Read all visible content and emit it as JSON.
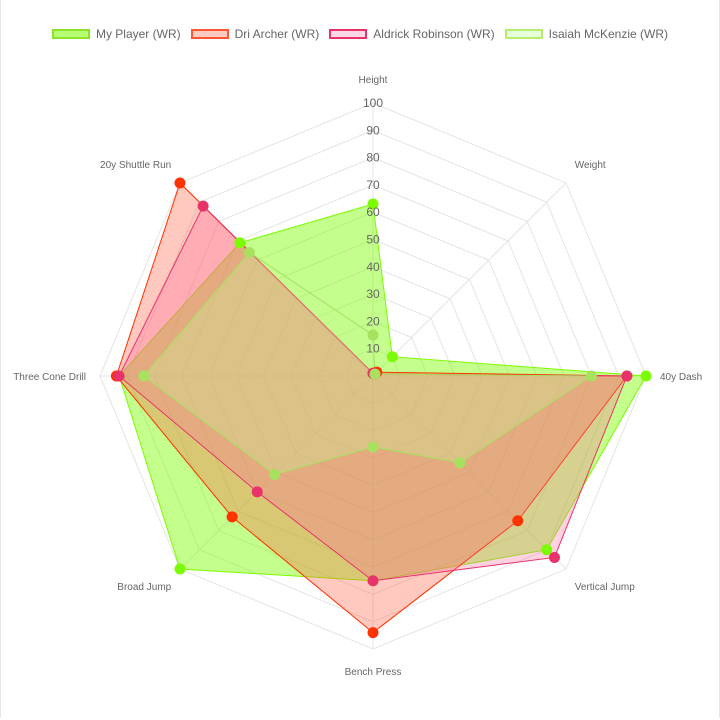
{
  "chart_data": {
    "type": "radar",
    "axes": [
      "Height",
      "Weight",
      "40y Dash",
      "Vertical Jump",
      "Bench Press",
      "Broad Jump",
      "Three Cone Drill",
      "20y Shuttle Run"
    ],
    "r_ticks": [
      "10",
      "20",
      "30",
      "40",
      "50",
      "60",
      "70",
      "80",
      "90",
      "100"
    ],
    "rlim": [
      0,
      100
    ],
    "grid": true,
    "legend_position": "top",
    "series": [
      {
        "name": "My Player (WR)",
        "values": [
          63,
          10,
          100,
          90,
          75,
          100,
          93,
          69
        ],
        "color": "#7cfc00",
        "fill": "rgba(124,252,0,0.45)"
      },
      {
        "name": "Dri Archer (WR)",
        "values": [
          1,
          2,
          93,
          75,
          94,
          73,
          94,
          100
        ],
        "color": "#ff3300",
        "fill": "rgba(255,99,71,0.35)"
      },
      {
        "name": "Aldrick Robinson (WR)",
        "values": [
          1,
          1,
          93,
          94,
          75,
          60,
          93,
          88
        ],
        "color": "#e8336a",
        "fill": "rgba(255,105,160,0.3)"
      },
      {
        "name": "Isaiah McKenzie (WR)",
        "values": [
          15,
          1,
          80,
          45,
          26,
          51,
          84,
          64
        ],
        "color": "#a8e060",
        "fill": "rgba(200,250,150,0.3)"
      }
    ]
  }
}
